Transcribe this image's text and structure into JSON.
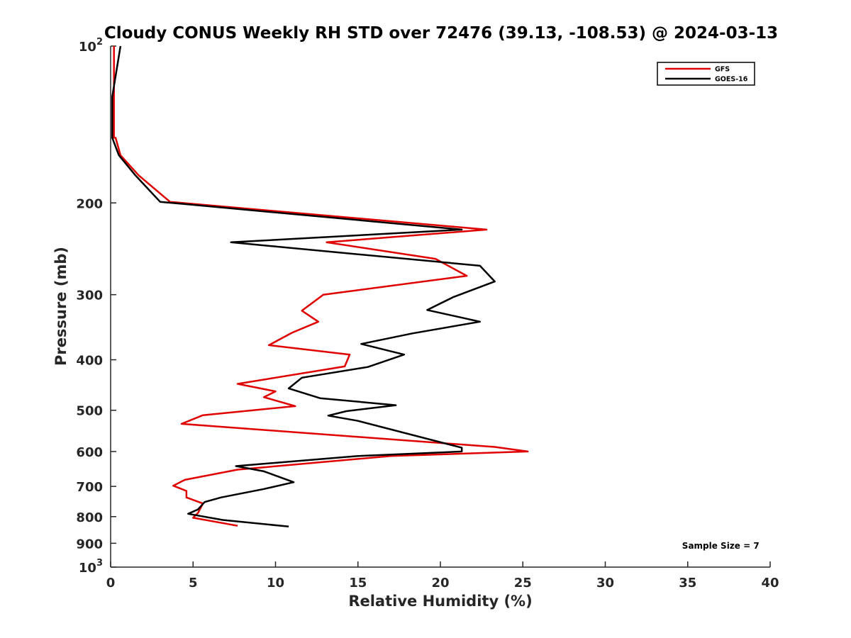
{
  "chart_data": {
    "type": "line",
    "title": "Cloudy CONUS Weekly RH STD over 72476 (39.13, -108.53) @ 2024-03-13",
    "xlabel": "Relative Humidity (%)",
    "ylabel": "Pressure (mb)",
    "xlim": [
      0,
      40
    ],
    "ylim": [
      100,
      1000
    ],
    "yscale": "log",
    "y_reversed": true,
    "grid": false,
    "legend_position": "top-right",
    "x_ticks": [
      0,
      5,
      10,
      15,
      20,
      25,
      30,
      35,
      40
    ],
    "y_ticks": [
      {
        "value": 100,
        "base": "10",
        "exp": "2",
        "text": ""
      },
      {
        "value": 200,
        "text": "200"
      },
      {
        "value": 300,
        "text": "300"
      },
      {
        "value": 400,
        "text": "400"
      },
      {
        "value": 500,
        "text": "500"
      },
      {
        "value": 600,
        "text": "600"
      },
      {
        "value": 700,
        "text": "700"
      },
      {
        "value": 800,
        "text": "800"
      },
      {
        "value": 900,
        "text": "900"
      },
      {
        "value": 1000,
        "base": "10",
        "exp": "3",
        "text": ""
      }
    ],
    "series": [
      {
        "name": "GFS",
        "color": "#e00000",
        "points": [
          [
            0.2,
            100
          ],
          [
            0.2,
            125
          ],
          [
            0.2,
            150
          ],
          [
            0.3,
            150
          ],
          [
            0.6,
            162
          ],
          [
            1.7,
            177
          ],
          [
            3.6,
            199
          ],
          [
            22.8,
            225
          ],
          [
            13.1,
            238
          ],
          [
            19.7,
            256
          ],
          [
            21.6,
            276
          ],
          [
            12.9,
            300
          ],
          [
            11.6,
            322
          ],
          [
            12.6,
            338
          ],
          [
            11.0,
            355
          ],
          [
            9.6,
            375
          ],
          [
            14.5,
            391
          ],
          [
            14.2,
            412
          ],
          [
            7.7,
            445
          ],
          [
            10.0,
            460
          ],
          [
            9.3,
            472
          ],
          [
            11.2,
            491
          ],
          [
            5.6,
            511
          ],
          [
            4.3,
            531
          ],
          [
            23.3,
            588
          ],
          [
            25.3,
            600
          ],
          [
            17.0,
            612
          ],
          [
            7.7,
            650
          ],
          [
            4.5,
            680
          ],
          [
            3.8,
            698
          ],
          [
            4.6,
            714
          ],
          [
            4.6,
            735
          ],
          [
            5.6,
            755
          ],
          [
            5.3,
            787
          ],
          [
            5.0,
            804
          ],
          [
            7.7,
            833
          ]
        ]
      },
      {
        "name": "GOES-16",
        "color": "#000000",
        "points": [
          [
            0.6,
            100
          ],
          [
            0.1,
            125
          ],
          [
            0.1,
            150
          ],
          [
            0.5,
            162
          ],
          [
            1.5,
            177
          ],
          [
            3.0,
            199
          ],
          [
            21.3,
            225
          ],
          [
            7.3,
            238
          ],
          [
            22.4,
            264
          ],
          [
            23.3,
            283
          ],
          [
            20.8,
            303
          ],
          [
            19.2,
            321
          ],
          [
            22.4,
            338
          ],
          [
            18.3,
            356
          ],
          [
            15.2,
            373
          ],
          [
            17.8,
            391
          ],
          [
            15.6,
            413
          ],
          [
            11.6,
            433
          ],
          [
            10.8,
            454
          ],
          [
            12.7,
            474
          ],
          [
            17.3,
            489
          ],
          [
            14.3,
            502
          ],
          [
            13.2,
            512
          ],
          [
            15.0,
            524
          ],
          [
            21.3,
            590
          ],
          [
            21.3,
            600
          ],
          [
            15.0,
            612
          ],
          [
            7.6,
            640
          ],
          [
            9.3,
            655
          ],
          [
            11.1,
            687
          ],
          [
            9.3,
            708
          ],
          [
            6.7,
            735
          ],
          [
            5.7,
            750
          ],
          [
            5.3,
            775
          ],
          [
            4.7,
            790
          ],
          [
            6.8,
            812
          ],
          [
            10.8,
            836
          ]
        ]
      }
    ],
    "annotations": [
      {
        "text": "Sample Size = 7",
        "x": 37,
        "y": 910
      }
    ]
  }
}
